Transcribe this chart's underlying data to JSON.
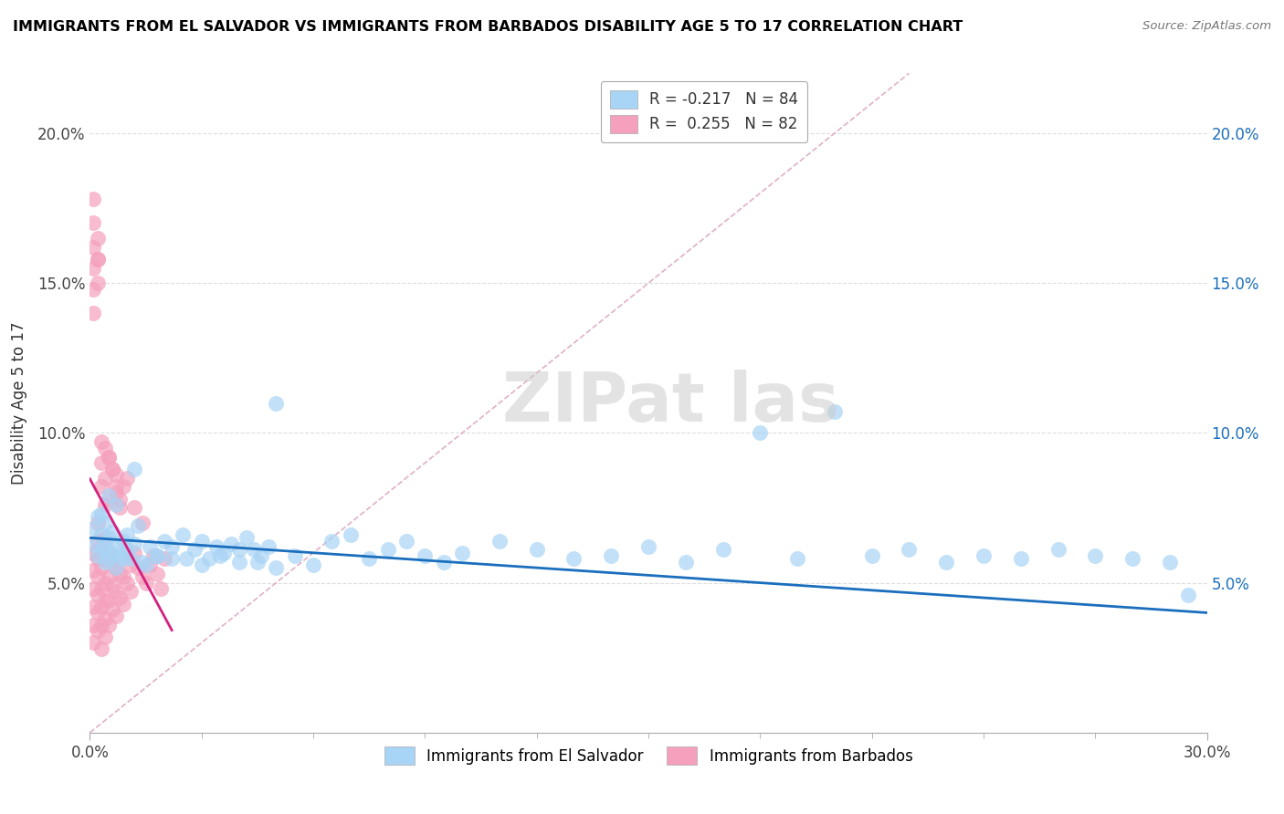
{
  "title": "IMMIGRANTS FROM EL SALVADOR VS IMMIGRANTS FROM BARBADOS DISABILITY AGE 5 TO 17 CORRELATION CHART",
  "source": "Source: ZipAtlas.com",
  "ylabel": "Disability Age 5 to 17",
  "legend_blue_label": "Immigrants from El Salvador",
  "legend_pink_label": "Immigrants from Barbados",
  "legend_blue_r": "R = -0.217",
  "legend_blue_n": "N = 84",
  "legend_pink_r": "R =  0.255",
  "legend_pink_n": "N = 82",
  "blue_color": "#A8D4F5",
  "pink_color": "#F5A0BC",
  "blue_line_color": "#1A6EBD",
  "pink_line_color": "#D42080",
  "diag_color": "#E0B0C8",
  "grid_color": "#DDDDDD",
  "text_color_blue": "#1A6EBD",
  "text_color_dark": "#222222",
  "xlim": [
    0.0,
    0.3
  ],
  "ylim": [
    0.0,
    0.22
  ],
  "yticks": [
    0.05,
    0.1,
    0.15,
    0.2
  ],
  "yticklabels": [
    "5.0%",
    "10.0%",
    "15.0%",
    "20.0%"
  ],
  "blue_x": [
    0.001,
    0.001,
    0.002,
    0.002,
    0.003,
    0.003,
    0.004,
    0.004,
    0.004,
    0.005,
    0.005,
    0.006,
    0.006,
    0.007,
    0.007,
    0.008,
    0.009,
    0.01,
    0.01,
    0.011,
    0.012,
    0.013,
    0.014,
    0.016,
    0.018,
    0.02,
    0.022,
    0.025,
    0.028,
    0.03,
    0.032,
    0.034,
    0.036,
    0.038,
    0.04,
    0.042,
    0.044,
    0.046,
    0.048,
    0.05,
    0.055,
    0.06,
    0.065,
    0.07,
    0.075,
    0.08,
    0.085,
    0.09,
    0.095,
    0.1,
    0.11,
    0.12,
    0.13,
    0.14,
    0.15,
    0.16,
    0.17,
    0.18,
    0.19,
    0.2,
    0.21,
    0.22,
    0.23,
    0.24,
    0.25,
    0.26,
    0.27,
    0.28,
    0.29,
    0.295,
    0.003,
    0.005,
    0.007,
    0.009,
    0.012,
    0.015,
    0.018,
    0.022,
    0.026,
    0.03,
    0.035,
    0.04,
    0.045,
    0.05
  ],
  "blue_y": [
    0.063,
    0.068,
    0.059,
    0.072,
    0.061,
    0.066,
    0.057,
    0.062,
    0.07,
    0.058,
    0.065,
    0.06,
    0.067,
    0.055,
    0.062,
    0.059,
    0.064,
    0.061,
    0.066,
    0.058,
    0.063,
    0.069,
    0.057,
    0.062,
    0.059,
    0.064,
    0.058,
    0.066,
    0.061,
    0.064,
    0.058,
    0.062,
    0.06,
    0.063,
    0.057,
    0.065,
    0.061,
    0.059,
    0.062,
    0.11,
    0.059,
    0.056,
    0.064,
    0.066,
    0.058,
    0.061,
    0.064,
    0.059,
    0.057,
    0.06,
    0.064,
    0.061,
    0.058,
    0.059,
    0.062,
    0.057,
    0.061,
    0.1,
    0.058,
    0.107,
    0.059,
    0.061,
    0.057,
    0.059,
    0.058,
    0.061,
    0.059,
    0.058,
    0.057,
    0.046,
    0.073,
    0.079,
    0.076,
    0.058,
    0.088,
    0.056,
    0.059,
    0.062,
    0.058,
    0.056,
    0.059,
    0.061,
    0.057,
    0.055
  ],
  "pink_x": [
    0.001,
    0.001,
    0.001,
    0.001,
    0.001,
    0.001,
    0.002,
    0.002,
    0.002,
    0.002,
    0.002,
    0.002,
    0.002,
    0.003,
    0.003,
    0.003,
    0.003,
    0.003,
    0.003,
    0.004,
    0.004,
    0.004,
    0.004,
    0.004,
    0.004,
    0.005,
    0.005,
    0.005,
    0.005,
    0.006,
    0.006,
    0.006,
    0.007,
    0.007,
    0.007,
    0.008,
    0.008,
    0.009,
    0.009,
    0.01,
    0.01,
    0.011,
    0.011,
    0.012,
    0.013,
    0.014,
    0.015,
    0.016,
    0.017,
    0.018,
    0.019,
    0.02,
    0.001,
    0.001,
    0.001,
    0.002,
    0.002,
    0.003,
    0.003,
    0.004,
    0.004,
    0.005,
    0.005,
    0.006,
    0.007,
    0.007,
    0.008,
    0.009,
    0.01,
    0.012,
    0.014,
    0.001,
    0.001,
    0.001,
    0.002,
    0.002,
    0.003,
    0.004,
    0.005,
    0.006,
    0.007,
    0.008
  ],
  "pink_y": [
    0.06,
    0.054,
    0.048,
    0.042,
    0.036,
    0.03,
    0.058,
    0.052,
    0.046,
    0.04,
    0.064,
    0.07,
    0.034,
    0.062,
    0.055,
    0.048,
    0.042,
    0.036,
    0.028,
    0.058,
    0.05,
    0.044,
    0.038,
    0.065,
    0.032,
    0.06,
    0.052,
    0.044,
    0.036,
    0.057,
    0.049,
    0.041,
    0.055,
    0.047,
    0.039,
    0.053,
    0.045,
    0.052,
    0.043,
    0.059,
    0.05,
    0.056,
    0.047,
    0.06,
    0.055,
    0.052,
    0.05,
    0.056,
    0.059,
    0.053,
    0.048,
    0.058,
    0.14,
    0.148,
    0.155,
    0.15,
    0.158,
    0.082,
    0.09,
    0.076,
    0.085,
    0.092,
    0.078,
    0.088,
    0.086,
    0.08,
    0.075,
    0.082,
    0.085,
    0.075,
    0.07,
    0.178,
    0.17,
    0.162,
    0.165,
    0.158,
    0.097,
    0.095,
    0.092,
    0.088,
    0.082,
    0.078
  ]
}
